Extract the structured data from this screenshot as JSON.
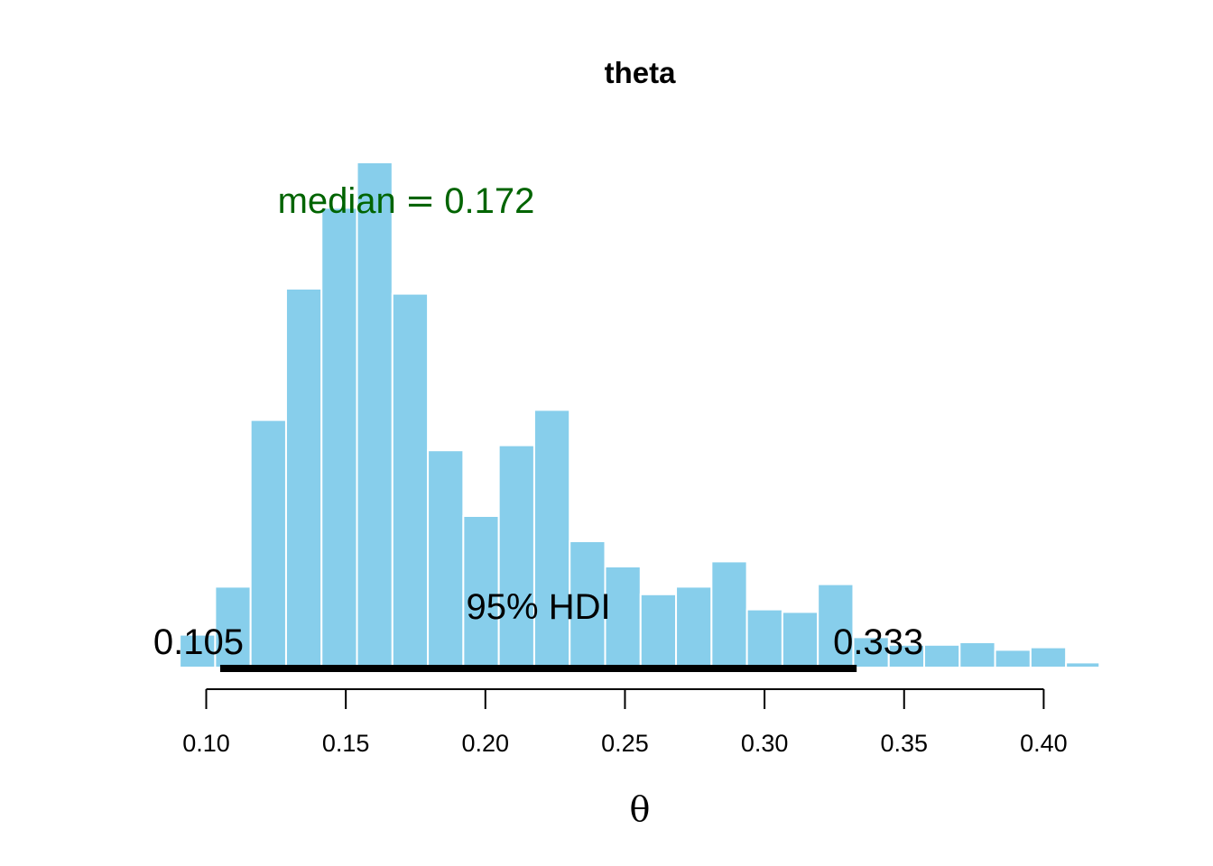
{
  "chart_data": {
    "type": "bar",
    "title": "theta",
    "xlabel": "θ",
    "ylabel": "",
    "xlim": [
      0.0905,
      0.42
    ],
    "ylim": [
      0,
      100
    ],
    "bin_width": 0.0127,
    "bin_starts": [
      0.0905,
      0.1032,
      0.1159,
      0.1286,
      0.1413,
      0.154,
      0.1667,
      0.1794,
      0.1921,
      0.2048,
      0.2175,
      0.2302,
      0.2429,
      0.2556,
      0.2683,
      0.281,
      0.2937,
      0.3064,
      0.3191,
      0.3318,
      0.3445,
      0.3572,
      0.3699,
      0.3826,
      0.3953,
      0.408
    ],
    "values": [
      6.5,
      16.0,
      49.0,
      75.0,
      91.0,
      100.0,
      74.0,
      43.0,
      30.0,
      44.0,
      51.0,
      25.0,
      20.0,
      14.5,
      16.0,
      21.0,
      11.5,
      11.0,
      16.5,
      6.0,
      4.5,
      4.5,
      5.0,
      3.5,
      4.0,
      1.0
    ],
    "bar_color": "#87CEEB",
    "bar_edge_color": "#ffffff",
    "xticks": [
      "0.10",
      "0.15",
      "0.20",
      "0.25",
      "0.30",
      "0.35",
      "0.40"
    ],
    "xtick_values": [
      0.1,
      0.15,
      0.2,
      0.25,
      0.3,
      0.35,
      0.4
    ],
    "median": {
      "label": "median",
      "eq": "=",
      "value": "0.172",
      "color": "#006400"
    },
    "hdi": {
      "label": "95% HDI",
      "low": 0.105,
      "high": 0.333,
      "low_label": "0.105",
      "high_label": "0.333",
      "color": "#000000"
    },
    "grid": false
  }
}
